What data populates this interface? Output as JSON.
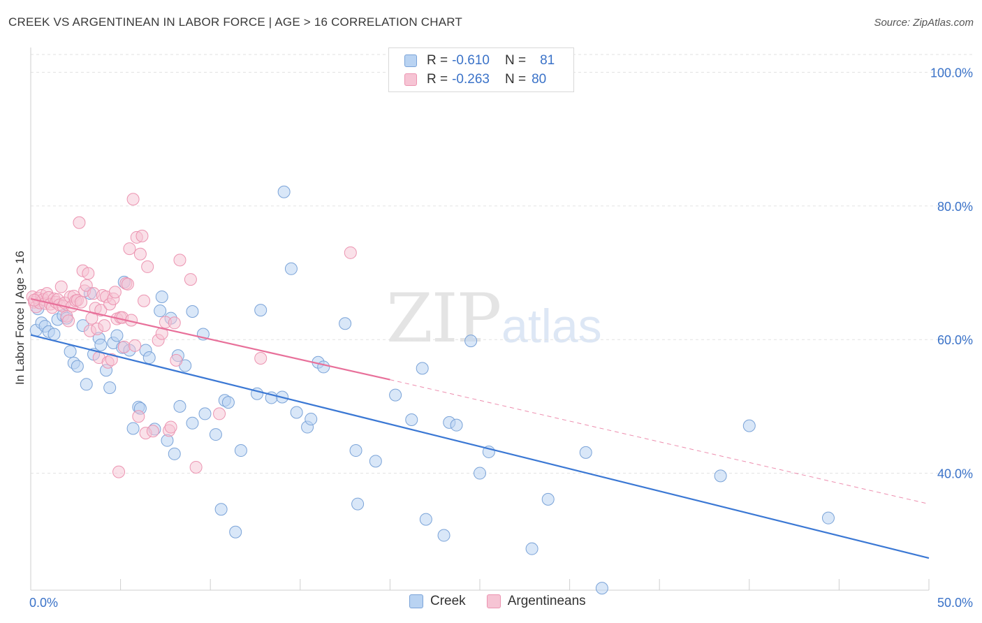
{
  "header": {
    "title": "CREEK VS ARGENTINEAN IN LABOR FORCE | AGE > 16 CORRELATION CHART",
    "source": "Source: ZipAtlas.com"
  },
  "legend_top": {
    "rows": [
      {
        "r_label": "R =",
        "r_value": "-0.610",
        "n_label": "N =",
        "n_value": "81"
      },
      {
        "r_label": "R =",
        "r_value": "-0.263",
        "n_label": "N =",
        "n_value": "80"
      }
    ]
  },
  "legend_bottom": {
    "creek": "Creek",
    "argentineans": "Argentineans"
  },
  "watermark": {
    "zip": "ZIP",
    "atlas": "atlas"
  },
  "colors": {
    "creek_fill": "#b9d3f2",
    "creek_stroke": "#7aa3d8",
    "creek_line": "#3b78d4",
    "arg_fill": "#f6c4d4",
    "arg_stroke": "#ec94b1",
    "arg_line": "#e8709a",
    "tick_label": "#3a72c8",
    "grid": "#e2e2e2"
  },
  "chart_data": {
    "type": "scatter",
    "title": "CREEK VS ARGENTINEAN IN LABOR FORCE | AGE > 16 CORRELATION CHART",
    "xlabel": "",
    "ylabel": "In Labor Force | Age > 16",
    "xlim": [
      0,
      50
    ],
    "ylim": [
      22.5,
      103.5
    ],
    "x_tick_labels": [
      "0.0%",
      "50.0%"
    ],
    "y_ticks": [
      40,
      60,
      80,
      100
    ],
    "y_tick_labels": [
      "40.0%",
      "60.0%",
      "80.0%",
      "100.0%"
    ],
    "grid": true,
    "legend_position": "top-center",
    "series": [
      {
        "name": "Creek",
        "r": -0.61,
        "n": 81,
        "trend": {
          "x": [
            0,
            50
          ],
          "y": [
            60.7,
            27.3
          ]
        },
        "points": [
          [
            0.3,
            61.4
          ],
          [
            0.6,
            62.5
          ],
          [
            0.8,
            62.0
          ],
          [
            1.0,
            61.2
          ],
          [
            1.3,
            60.8
          ],
          [
            1.5,
            63.0
          ],
          [
            1.8,
            63.6
          ],
          [
            2.0,
            63.2
          ],
          [
            2.2,
            58.2
          ],
          [
            2.4,
            56.5
          ],
          [
            2.6,
            56.0
          ],
          [
            2.9,
            62.1
          ],
          [
            3.1,
            53.3
          ],
          [
            3.3,
            66.9
          ],
          [
            3.5,
            57.8
          ],
          [
            3.8,
            60.2
          ],
          [
            3.9,
            59.2
          ],
          [
            4.2,
            55.4
          ],
          [
            4.4,
            52.8
          ],
          [
            4.6,
            59.5
          ],
          [
            4.8,
            60.6
          ],
          [
            5.1,
            58.8
          ],
          [
            5.2,
            68.6
          ],
          [
            5.5,
            58.4
          ],
          [
            5.7,
            46.7
          ],
          [
            6.0,
            49.9
          ],
          [
            6.1,
            49.7
          ],
          [
            6.4,
            58.4
          ],
          [
            6.6,
            57.3
          ],
          [
            6.9,
            46.6
          ],
          [
            7.2,
            64.3
          ],
          [
            7.3,
            66.4
          ],
          [
            7.6,
            44.9
          ],
          [
            7.8,
            63.2
          ],
          [
            8.0,
            42.9
          ],
          [
            8.2,
            57.6
          ],
          [
            8.3,
            50.0
          ],
          [
            8.6,
            56.1
          ],
          [
            9.0,
            47.5
          ],
          [
            9.0,
            64.2
          ],
          [
            9.6,
            60.8
          ],
          [
            9.7,
            48.9
          ],
          [
            10.3,
            45.8
          ],
          [
            10.6,
            34.6
          ],
          [
            10.8,
            50.9
          ],
          [
            11.0,
            50.6
          ],
          [
            11.4,
            31.2
          ],
          [
            11.7,
            43.4
          ],
          [
            12.6,
            51.9
          ],
          [
            12.8,
            64.4
          ],
          [
            13.4,
            51.3
          ],
          [
            14.0,
            51.4
          ],
          [
            14.1,
            82.1
          ],
          [
            14.5,
            70.6
          ],
          [
            14.8,
            49.1
          ],
          [
            15.4,
            46.9
          ],
          [
            15.6,
            48.1
          ],
          [
            16.0,
            56.6
          ],
          [
            16.3,
            55.9
          ],
          [
            17.5,
            62.4
          ],
          [
            18.1,
            43.4
          ],
          [
            18.2,
            35.4
          ],
          [
            19.2,
            41.8
          ],
          [
            20.3,
            51.7
          ],
          [
            21.2,
            48.0
          ],
          [
            21.8,
            55.7
          ],
          [
            22.0,
            33.1
          ],
          [
            23.0,
            30.7
          ],
          [
            23.3,
            47.6
          ],
          [
            23.7,
            47.2
          ],
          [
            24.5,
            59.8
          ],
          [
            25.0,
            40.0
          ],
          [
            25.5,
            43.2
          ],
          [
            27.9,
            28.7
          ],
          [
            28.8,
            36.1
          ],
          [
            30.9,
            43.1
          ],
          [
            31.8,
            22.8
          ],
          [
            38.4,
            39.6
          ],
          [
            40.0,
            47.1
          ],
          [
            44.4,
            33.3
          ],
          [
            0.4,
            64.6
          ]
        ]
      },
      {
        "name": "Argentineans",
        "r": -0.263,
        "n": 80,
        "trend": {
          "x": [
            0,
            20
          ],
          "y": [
            66.1,
            54.0
          ]
        },
        "trend_dashed": {
          "x": [
            20,
            50
          ],
          "y": [
            54.0,
            35.4
          ]
        },
        "points": [
          [
            0.1,
            66.4
          ],
          [
            0.2,
            65.6
          ],
          [
            0.3,
            64.9
          ],
          [
            0.4,
            66.2
          ],
          [
            0.5,
            65.5
          ],
          [
            0.6,
            66.6
          ],
          [
            0.7,
            66.0
          ],
          [
            0.8,
            65.4
          ],
          [
            0.9,
            66.9
          ],
          [
            1.0,
            66.3
          ],
          [
            1.1,
            65.3
          ],
          [
            1.2,
            64.8
          ],
          [
            1.3,
            66.1
          ],
          [
            1.4,
            65.6
          ],
          [
            1.5,
            66.0
          ],
          [
            1.6,
            65.2
          ],
          [
            1.7,
            67.9
          ],
          [
            1.8,
            65.0
          ],
          [
            1.9,
            65.5
          ],
          [
            2.0,
            63.5
          ],
          [
            2.1,
            62.8
          ],
          [
            2.2,
            66.4
          ],
          [
            2.3,
            65.0
          ],
          [
            2.4,
            66.5
          ],
          [
            2.5,
            65.8
          ],
          [
            2.6,
            65.9
          ],
          [
            2.7,
            77.5
          ],
          [
            2.8,
            65.6
          ],
          [
            2.9,
            70.3
          ],
          [
            3.0,
            67.3
          ],
          [
            3.1,
            68.1
          ],
          [
            3.2,
            69.9
          ],
          [
            3.3,
            61.3
          ],
          [
            3.4,
            63.2
          ],
          [
            3.5,
            66.9
          ],
          [
            3.6,
            64.7
          ],
          [
            3.7,
            61.6
          ],
          [
            3.8,
            57.3
          ],
          [
            3.9,
            64.4
          ],
          [
            4.0,
            66.6
          ],
          [
            4.1,
            62.1
          ],
          [
            4.2,
            66.4
          ],
          [
            4.3,
            56.6
          ],
          [
            4.4,
            65.3
          ],
          [
            4.5,
            57.0
          ],
          [
            4.6,
            66.1
          ],
          [
            4.7,
            67.1
          ],
          [
            4.8,
            63.1
          ],
          [
            4.9,
            40.2
          ],
          [
            5.0,
            63.3
          ],
          [
            5.1,
            63.3
          ],
          [
            5.2,
            58.9
          ],
          [
            5.3,
            68.4
          ],
          [
            5.4,
            68.3
          ],
          [
            5.5,
            73.6
          ],
          [
            5.6,
            62.9
          ],
          [
            5.7,
            81.0
          ],
          [
            5.8,
            59.1
          ],
          [
            5.9,
            75.3
          ],
          [
            6.0,
            48.5
          ],
          [
            6.1,
            72.8
          ],
          [
            6.2,
            75.5
          ],
          [
            6.3,
            65.8
          ],
          [
            6.4,
            46.0
          ],
          [
            6.5,
            70.9
          ],
          [
            6.8,
            46.3
          ],
          [
            7.1,
            59.9
          ],
          [
            7.3,
            60.9
          ],
          [
            7.5,
            62.6
          ],
          [
            7.7,
            46.4
          ],
          [
            7.8,
            46.9
          ],
          [
            8.0,
            62.5
          ],
          [
            8.1,
            56.9
          ],
          [
            8.3,
            71.9
          ],
          [
            8.9,
            69.0
          ],
          [
            9.2,
            40.9
          ],
          [
            10.5,
            48.9
          ],
          [
            12.8,
            57.2
          ],
          [
            17.8,
            73.0
          ],
          [
            0.2,
            65.9
          ]
        ]
      }
    ]
  }
}
